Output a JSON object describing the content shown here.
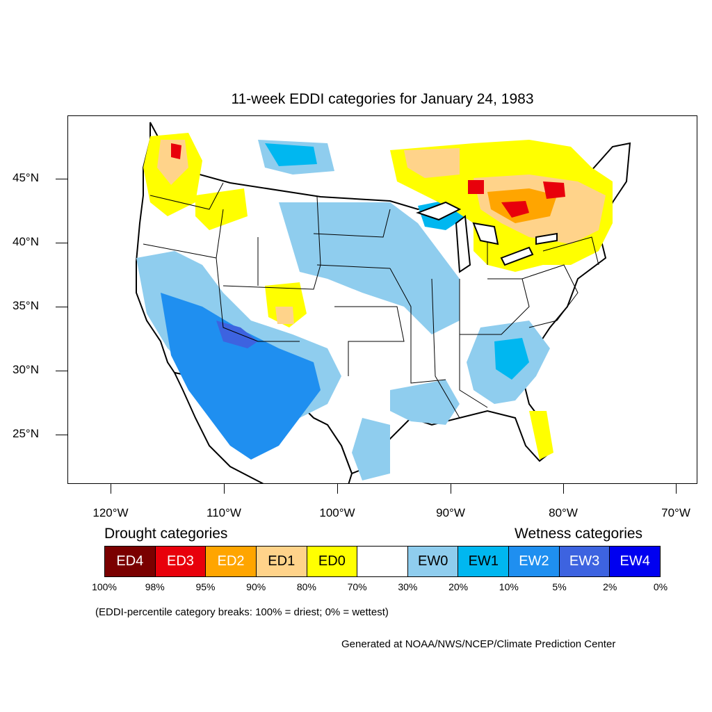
{
  "title": "11-week EDDI categories for January 24, 1983",
  "lat_labels": [
    "45°N",
    "40°N",
    "35°N",
    "30°N",
    "25°N"
  ],
  "lon_labels": [
    "120°W",
    "110°W",
    "100°W",
    "90°W",
    "80°W",
    "70°W"
  ],
  "legend": {
    "drought_heading": "Drought categories",
    "wetness_heading": "Wetness categories",
    "categories": [
      {
        "label": "ED4",
        "color": "#7a0000",
        "text_color": "#ffffff"
      },
      {
        "label": "ED3",
        "color": "#e8000b",
        "text_color": "#ffffff"
      },
      {
        "label": "ED2",
        "color": "#ffa500",
        "text_color": "#ffffff"
      },
      {
        "label": "ED1",
        "color": "#ffd38a",
        "text_color": "#000000"
      },
      {
        "label": "ED0",
        "color": "#ffff00",
        "text_color": "#000000"
      },
      {
        "label": "",
        "color": "#ffffff",
        "text_color": "#000000"
      },
      {
        "label": "EW0",
        "color": "#8fcdee",
        "text_color": "#000000"
      },
      {
        "label": "EW1",
        "color": "#00b7f0",
        "text_color": "#000000"
      },
      {
        "label": "EW2",
        "color": "#1f8ff0",
        "text_color": "#ffffff"
      },
      {
        "label": "EW3",
        "color": "#3d63e0",
        "text_color": "#ffffff"
      },
      {
        "label": "EW4",
        "color": "#0000f0",
        "text_color": "#ffffff"
      }
    ],
    "breaks": [
      "100%",
      "98%",
      "95%",
      "90%",
      "80%",
      "70%",
      "30%",
      "20%",
      "10%",
      "5%",
      "2%",
      "0%"
    ]
  },
  "note": "(EDDI-percentile category breaks: 100% = driest; 0% = wettest)",
  "credit": "Generated at NOAA/NWS/NCEP/Climate Prediction Center"
}
